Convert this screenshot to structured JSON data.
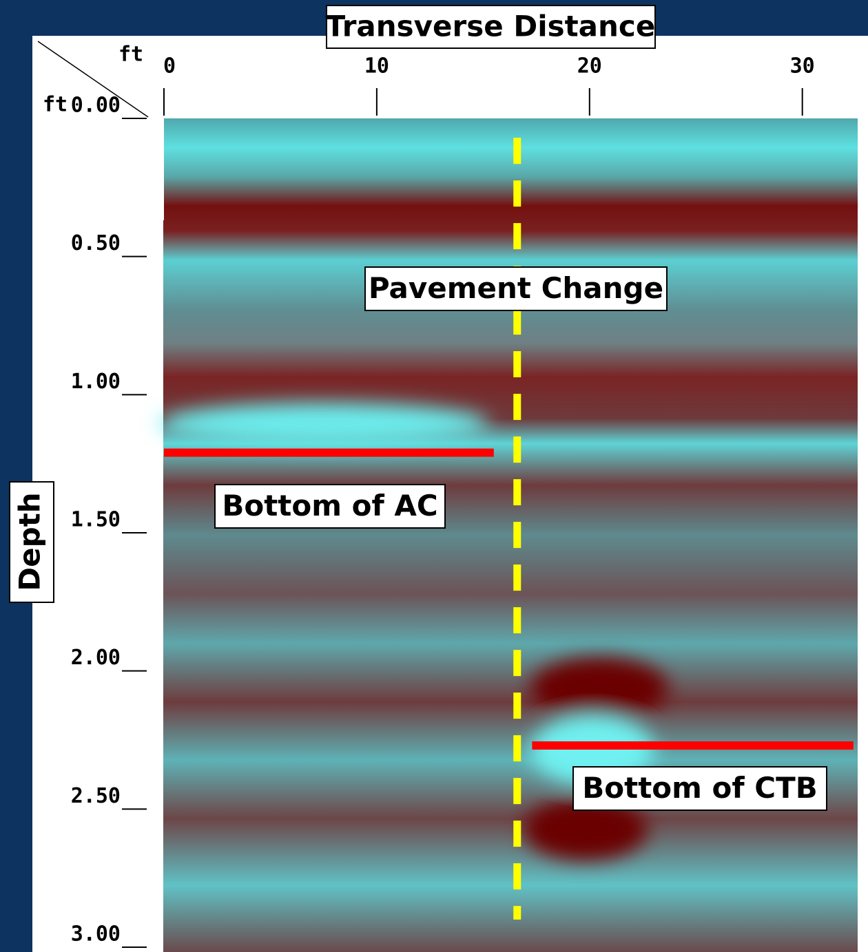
{
  "chart_data": {
    "type": "radargram",
    "xlabel": "Transverse Distance",
    "ylabel": "Depth",
    "xunit": "ft",
    "yunit": "ft",
    "xlim": [
      0,
      32.6
    ],
    "ylim": [
      0,
      3
    ],
    "xticks": [
      0,
      10,
      20,
      30
    ],
    "yticks": [
      {
        "value": 0,
        "label": "0.00"
      },
      {
        "value": 0.5,
        "label": "0.50"
      },
      {
        "value": 1,
        "label": "1.00"
      },
      {
        "value": 1.5,
        "label": "1.50"
      },
      {
        "value": 2,
        "label": "2.00"
      },
      {
        "value": 2.5,
        "label": "2.50"
      },
      {
        "value": 3,
        "label": "3.00"
      }
    ],
    "annotations": [
      {
        "text": "Pavement Change",
        "x": [
          16.6,
          16.6
        ],
        "y": [
          0.07,
          2.9
        ],
        "color": "#ffff00"
      },
      {
        "text": "Bottom of AC",
        "x": [
          0,
          15.5
        ],
        "y": [
          1.21,
          1.21
        ],
        "color": "#ff0000"
      },
      {
        "text": "Bottom of CTB",
        "x": [
          17.3,
          32.4
        ],
        "y": [
          2.27,
          2.27
        ],
        "color": "#ff0000"
      }
    ]
  }
}
